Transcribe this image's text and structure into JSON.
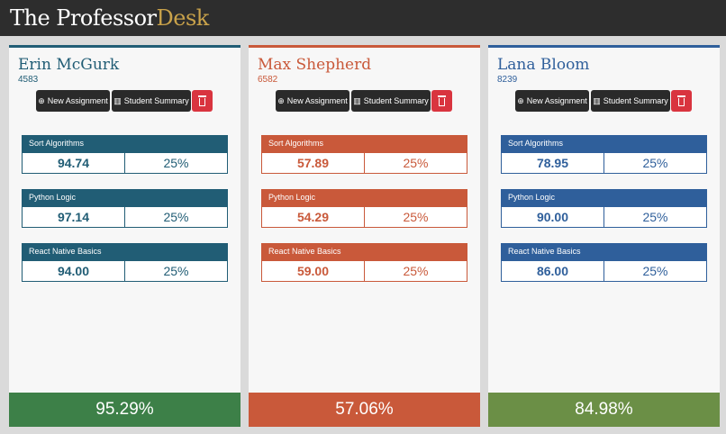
{
  "app": {
    "title_main": "The Professor",
    "title_accent": "Desk"
  },
  "buttons": {
    "new_assignment": "New Assignment",
    "student_summary": "Student Summary"
  },
  "students": [
    {
      "name": "Erin McGurk",
      "id": "4583",
      "theme": "#215d75",
      "footer_color": "#3d8048",
      "assignments": [
        {
          "title": "Sort Algorithms",
          "grade": "94.74",
          "weight": "25%"
        },
        {
          "title": "Python Logic",
          "grade": "97.14",
          "weight": "25%"
        },
        {
          "title": "React Native Basics",
          "grade": "94.00",
          "weight": "25%"
        }
      ],
      "overall": "95.29%"
    },
    {
      "name": "Max Shepherd",
      "id": "6582",
      "theme": "#c9593a",
      "footer_color": "#c9593a",
      "assignments": [
        {
          "title": "Sort Algorithms",
          "grade": "57.89",
          "weight": "25%"
        },
        {
          "title": "Python Logic",
          "grade": "54.29",
          "weight": "25%"
        },
        {
          "title": "React Native Basics",
          "grade": "59.00",
          "weight": "25%"
        }
      ],
      "overall": "57.06%"
    },
    {
      "name": "Lana Bloom",
      "id": "8239",
      "theme": "#2f5f9b",
      "footer_color": "#6b8f46",
      "assignments": [
        {
          "title": "Sort Algorithms",
          "grade": "78.95",
          "weight": "25%"
        },
        {
          "title": "Python Logic",
          "grade": "90.00",
          "weight": "25%"
        },
        {
          "title": "React Native Basics",
          "grade": "86.00",
          "weight": "25%"
        }
      ],
      "overall": "84.98%"
    }
  ]
}
